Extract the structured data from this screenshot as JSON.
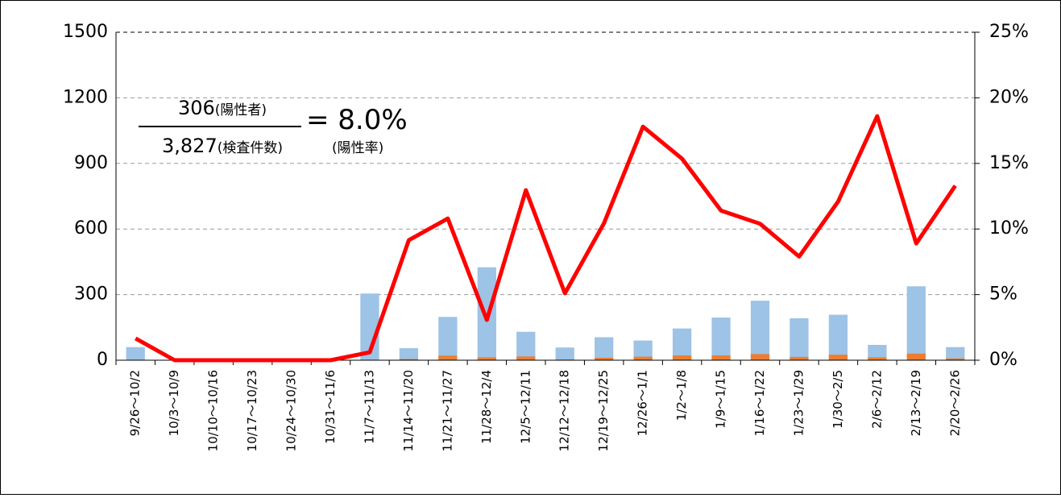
{
  "chart_data": {
    "type": "bar",
    "categories": [
      "9/26～10/2",
      "10/3～10/9",
      "10/10～10/16",
      "10/17～10/23",
      "10/24～10/30",
      "10/31～11/6",
      "11/7～11/13",
      "11/14～11/20",
      "11/21～11/27",
      "11/28～12/4",
      "12/5～12/11",
      "12/12～12/18",
      "12/19～12/25",
      "12/26～1/1",
      "1/2～1/8",
      "1/9～1/15",
      "1/16～1/22",
      "1/23～1/29",
      "1/30～2/5",
      "2/6～2/12",
      "2/13～2/19",
      "2/20～2/26"
    ],
    "series": [
      {
        "type": "bar",
        "color": "#9dc3e6",
        "values": [
          60,
          0,
          0,
          0,
          0,
          0,
          305,
          55,
          198,
          425,
          130,
          58,
          105,
          90,
          145,
          195,
          272,
          192,
          208,
          70,
          338,
          60
        ]
      },
      {
        "type": "bar",
        "color": "#ed7d31",
        "values": [
          1,
          0,
          0,
          0,
          0,
          0,
          2,
          5,
          21,
          13,
          17,
          3,
          11,
          16,
          22,
          22,
          28,
          15,
          25,
          13,
          30,
          8
        ]
      },
      {
        "type": "line",
        "axis": "y2",
        "color": "#ff0000",
        "values": [
          1.66,
          0,
          0,
          0,
          0,
          0,
          0.6,
          9.15,
          10.8,
          3.07,
          12.96,
          5.1,
          10.44,
          17.8,
          15.36,
          11.4,
          10.4,
          7.9,
          12.1,
          18.6,
          8.9,
          13.3
        ]
      }
    ],
    "ylim": [
      0,
      1500
    ],
    "yticks": [
      0,
      300,
      600,
      900,
      1200,
      1500
    ],
    "y2lim": [
      0,
      25
    ],
    "y2ticks": [
      {
        "value": 0,
        "label": "0%"
      },
      {
        "value": 5,
        "label": "5%"
      },
      {
        "value": 10,
        "label": "10%"
      },
      {
        "value": 15,
        "label": "15%"
      },
      {
        "value": 20,
        "label": "20%"
      },
      {
        "value": 25,
        "label": "25%"
      }
    ],
    "grid": true,
    "annotation": {
      "numerator": "306",
      "numerator_unit": "(陽性者)",
      "denominator": "3,827",
      "denominator_unit": "(検査件数)",
      "result": "= 8.0%",
      "result_label": "(陽性率)"
    }
  }
}
